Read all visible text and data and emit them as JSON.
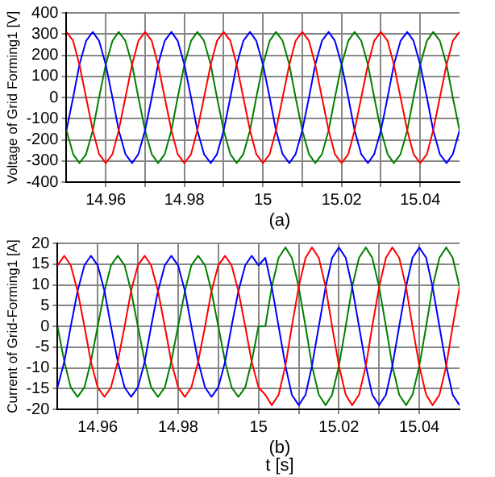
{
  "chart_data": [
    {
      "type": "line",
      "ylabel": "Voltage of Grid Forming1 [V]",
      "annotations": [
        "(a)"
      ],
      "legend": false,
      "grid": true,
      "marker": "none",
      "line_style": "solid",
      "xlim": [
        14.95,
        15.05
      ],
      "xticks": [
        {
          "value": 14.96,
          "label": "14.96"
        },
        {
          "value": 14.97,
          "label": null
        },
        {
          "value": 14.98,
          "label": "14.98"
        },
        {
          "value": 14.99,
          "label": null
        },
        {
          "value": 15,
          "label": "15"
        },
        {
          "value": 15.01,
          "label": null
        },
        {
          "value": 15.02,
          "label": "15.02"
        },
        {
          "value": 15.03,
          "label": null
        },
        {
          "value": 15.04,
          "label": "15.04"
        }
      ],
      "ylim": [
        -400,
        400
      ],
      "yticks": [
        -400,
        -300,
        -200,
        -100,
        0,
        100,
        200,
        300,
        400
      ],
      "x": [
        14.95,
        14.9517,
        14.9533,
        14.955,
        14.9567,
        14.9583,
        14.96,
        14.9617,
        14.9633,
        14.965,
        14.9667,
        14.9683,
        14.97,
        14.9717,
        14.9733,
        14.975,
        14.9767,
        14.9783,
        14.98,
        14.9817,
        14.9833,
        14.985,
        14.9867,
        14.9883,
        14.99,
        14.9917,
        14.9933,
        14.995,
        14.9967,
        14.9983,
        15,
        15.0017,
        15.0033,
        15.005,
        15.0067,
        15.0083,
        15.01,
        15.0117,
        15.0133,
        15.015,
        15.0167,
        15.0183,
        15.02,
        15.0217,
        15.0233,
        15.025,
        15.0267,
        15.0283,
        15.03,
        15.0317,
        15.0333,
        15.035,
        15.0367,
        15.0383,
        15.04,
        15.0417,
        15.0433,
        15.045,
        15.0467,
        15.0483,
        15.05
      ],
      "series": [
        {
          "color": "#ff0000",
          "values": [
            310,
            268,
            155,
            0,
            -155,
            -268,
            -310,
            -268,
            -155,
            0,
            155,
            268,
            310,
            268,
            155,
            0,
            -155,
            -268,
            -310,
            -268,
            -155,
            0,
            155,
            268,
            310,
            268,
            155,
            0,
            -155,
            -268,
            -310,
            -268,
            -155,
            0,
            155,
            268,
            310,
            268,
            155,
            0,
            -155,
            -268,
            -310,
            -268,
            -155,
            0,
            155,
            268,
            310,
            268,
            155,
            0,
            -155,
            -268,
            -310,
            -268,
            -155,
            0,
            155,
            268,
            310
          ]
        },
        {
          "color": "#0000ff",
          "values": [
            -155,
            0,
            155,
            268,
            310,
            268,
            155,
            0,
            -155,
            -268,
            -310,
            -268,
            -155,
            0,
            155,
            268,
            310,
            268,
            155,
            0,
            -155,
            -268,
            -310,
            -268,
            -155,
            0,
            155,
            268,
            310,
            268,
            155,
            0,
            -155,
            -268,
            -310,
            -268,
            -155,
            0,
            155,
            268,
            310,
            268,
            155,
            0,
            -155,
            -268,
            -310,
            -268,
            -155,
            0,
            155,
            268,
            310,
            268,
            155,
            0,
            -155,
            -268,
            -310,
            -268,
            -155
          ]
        },
        {
          "color": "#008000",
          "values": [
            -155,
            -268,
            -310,
            -268,
            -155,
            0,
            155,
            268,
            310,
            268,
            155,
            0,
            -155,
            -268,
            -310,
            -268,
            -155,
            0,
            155,
            268,
            310,
            268,
            155,
            0,
            -155,
            -268,
            -310,
            -268,
            -155,
            0,
            155,
            268,
            310,
            268,
            155,
            0,
            -155,
            -268,
            -310,
            -268,
            -155,
            0,
            155,
            268,
            310,
            268,
            155,
            0,
            -155,
            -268,
            -310,
            -268,
            -155,
            0,
            155,
            268,
            310,
            268,
            155,
            0,
            -155
          ]
        }
      ]
    },
    {
      "type": "line",
      "ylabel": "Current of Grid-Forming1 [A]",
      "xlabel": "t [s]",
      "annotations": [
        "(b)"
      ],
      "legend": false,
      "grid": true,
      "marker": "none",
      "line_style": "solid",
      "xlim": [
        14.95,
        15.05
      ],
      "xticks": [
        {
          "value": 14.96,
          "label": "14.96"
        },
        {
          "value": 14.97,
          "label": null
        },
        {
          "value": 14.98,
          "label": "14.98"
        },
        {
          "value": 14.99,
          "label": null
        },
        {
          "value": 15,
          "label": "15"
        },
        {
          "value": 15.01,
          "label": null
        },
        {
          "value": 15.02,
          "label": "15.02"
        },
        {
          "value": 15.03,
          "label": null
        },
        {
          "value": 15.04,
          "label": "15.04"
        }
      ],
      "ylim": [
        -20,
        20
      ],
      "yticks": [
        -20,
        -15,
        -10,
        -5,
        0,
        5,
        10,
        15,
        20
      ],
      "x": [
        14.95,
        14.9517,
        14.9533,
        14.955,
        14.9567,
        14.9583,
        14.96,
        14.9617,
        14.9633,
        14.965,
        14.9667,
        14.9683,
        14.97,
        14.9717,
        14.9733,
        14.975,
        14.9767,
        14.9783,
        14.98,
        14.9817,
        14.9833,
        14.985,
        14.9867,
        14.9883,
        14.99,
        14.9917,
        14.9933,
        14.995,
        14.9967,
        14.9983,
        15,
        15.0017,
        15.0033,
        15.005,
        15.0067,
        15.0083,
        15.01,
        15.0117,
        15.0133,
        15.015,
        15.0167,
        15.0183,
        15.02,
        15.0217,
        15.0233,
        15.025,
        15.0267,
        15.0283,
        15.03,
        15.0317,
        15.0333,
        15.035,
        15.0367,
        15.0383,
        15.04,
        15.0417,
        15.0433,
        15.045,
        15.0467,
        15.0483,
        15.05
      ],
      "series": [
        {
          "color": "#ff0000",
          "values": [
            14.7,
            17,
            14.7,
            8.5,
            0,
            -8.5,
            -14.7,
            -17,
            -14.7,
            -8.5,
            0,
            8.5,
            14.7,
            17,
            14.7,
            8.5,
            0,
            -8.5,
            -14.7,
            -17,
            -14.7,
            -8.5,
            0,
            8.5,
            14.7,
            17,
            14.7,
            8.5,
            0,
            -8.5,
            -14.7,
            -16.5,
            -19,
            -16.5,
            -9.5,
            0,
            9.5,
            16.5,
            19,
            16.5,
            9.5,
            0,
            -9.5,
            -16.5,
            -19,
            -16.5,
            -9.5,
            0,
            9.5,
            16.5,
            19,
            16.5,
            9.5,
            0,
            -9.5,
            -16.5,
            -19,
            -16.5,
            -9.5,
            0,
            9.5
          ]
        },
        {
          "color": "#0000ff",
          "values": [
            -14.7,
            -8.5,
            0,
            8.5,
            14.7,
            17,
            14.7,
            8.5,
            0,
            -8.5,
            -14.7,
            -17,
            -14.7,
            -8.5,
            0,
            8.5,
            14.7,
            17,
            14.7,
            8.5,
            0,
            -8.5,
            -14.7,
            -17,
            -14.7,
            -8.5,
            0,
            8.5,
            14.7,
            17,
            14.7,
            16.5,
            9.5,
            0,
            -9.5,
            -16.5,
            -19,
            -16.5,
            -9.5,
            0,
            9.5,
            16.5,
            19,
            16.5,
            9.5,
            0,
            -9.5,
            -16.5,
            -19,
            -16.5,
            -9.5,
            0,
            9.5,
            16.5,
            19,
            16.5,
            9.5,
            0,
            -9.5,
            -16.5,
            -19
          ]
        },
        {
          "color": "#008000",
          "values": [
            0,
            -8.5,
            -14.7,
            -17,
            -14.7,
            -8.5,
            0,
            8.5,
            14.7,
            17,
            14.7,
            8.5,
            0,
            -8.5,
            -14.7,
            -17,
            -14.7,
            -8.5,
            0,
            8.5,
            14.7,
            17,
            14.7,
            8.5,
            0,
            -8.5,
            -14.7,
            -17,
            -14.7,
            -8.5,
            0,
            0,
            9.5,
            16.5,
            19,
            16.5,
            9.5,
            0,
            -9.5,
            -16.5,
            -19,
            -16.5,
            -9.5,
            0,
            9.5,
            16.5,
            19,
            16.5,
            9.5,
            0,
            -9.5,
            -16.5,
            -19,
            -16.5,
            -9.5,
            0,
            9.5,
            16.5,
            19,
            16.5,
            9.5
          ]
        }
      ]
    }
  ]
}
